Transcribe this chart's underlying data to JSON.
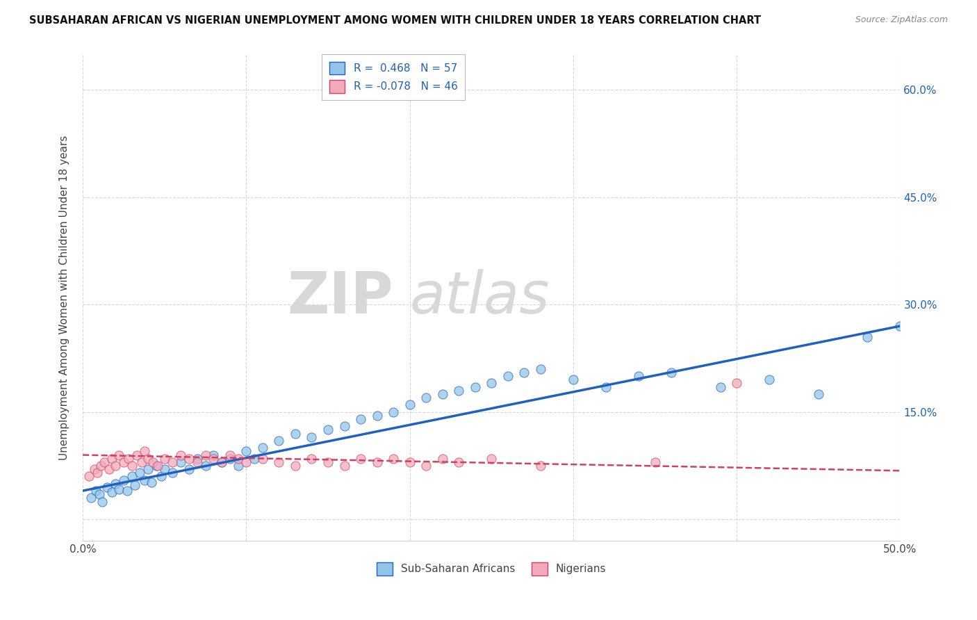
{
  "title": "SUBSAHARAN AFRICAN VS NIGERIAN UNEMPLOYMENT AMONG WOMEN WITH CHILDREN UNDER 18 YEARS CORRELATION CHART",
  "source": "Source: ZipAtlas.com",
  "ylabel": "Unemployment Among Women with Children Under 18 years",
  "xlim": [
    0.0,
    0.5
  ],
  "ylim": [
    -0.03,
    0.65
  ],
  "x_ticks": [
    0.0,
    0.1,
    0.2,
    0.3,
    0.4,
    0.5
  ],
  "x_tick_labels": [
    "0.0%",
    "",
    "",
    "",
    "",
    "50.0%"
  ],
  "y_ticks": [
    0.0,
    0.15,
    0.3,
    0.45,
    0.6
  ],
  "y_tick_right_labels": [
    "",
    "15.0%",
    "30.0%",
    "45.0%",
    "60.0%"
  ],
  "legend_r1": "R =  0.468",
  "legend_n1": "N = 57",
  "legend_r2": "R = -0.078",
  "legend_n2": "N = 46",
  "color_blue": "#92C5E8",
  "color_pink": "#F4AABB",
  "line_blue": "#2060C0",
  "line_pink": "#D04060",
  "background_color": "#FFFFFF",
  "grid_color": "#C8C8C8",
  "label_blue": "Sub-Saharan Africans",
  "label_pink": "Nigerians",
  "blue_scatter_x": [
    0.005,
    0.008,
    0.01,
    0.012,
    0.015,
    0.018,
    0.02,
    0.022,
    0.025,
    0.027,
    0.03,
    0.032,
    0.035,
    0.038,
    0.04,
    0.042,
    0.045,
    0.048,
    0.05,
    0.055,
    0.06,
    0.065,
    0.07,
    0.075,
    0.08,
    0.085,
    0.09,
    0.095,
    0.1,
    0.105,
    0.11,
    0.12,
    0.13,
    0.14,
    0.15,
    0.16,
    0.17,
    0.18,
    0.19,
    0.2,
    0.21,
    0.22,
    0.23,
    0.24,
    0.25,
    0.26,
    0.27,
    0.28,
    0.3,
    0.32,
    0.34,
    0.36,
    0.39,
    0.42,
    0.45,
    0.48,
    0.5
  ],
  "blue_scatter_y": [
    0.03,
    0.04,
    0.035,
    0.025,
    0.045,
    0.038,
    0.05,
    0.042,
    0.055,
    0.04,
    0.06,
    0.048,
    0.065,
    0.055,
    0.07,
    0.052,
    0.075,
    0.06,
    0.07,
    0.065,
    0.08,
    0.07,
    0.085,
    0.075,
    0.09,
    0.08,
    0.085,
    0.075,
    0.095,
    0.085,
    0.1,
    0.11,
    0.12,
    0.115,
    0.125,
    0.13,
    0.14,
    0.145,
    0.15,
    0.16,
    0.17,
    0.175,
    0.18,
    0.185,
    0.19,
    0.2,
    0.205,
    0.21,
    0.195,
    0.185,
    0.2,
    0.205,
    0.185,
    0.195,
    0.175,
    0.255,
    0.27
  ],
  "pink_scatter_x": [
    0.004,
    0.007,
    0.009,
    0.011,
    0.013,
    0.016,
    0.018,
    0.02,
    0.022,
    0.025,
    0.028,
    0.03,
    0.033,
    0.036,
    0.038,
    0.04,
    0.043,
    0.046,
    0.05,
    0.055,
    0.06,
    0.065,
    0.07,
    0.075,
    0.08,
    0.085,
    0.09,
    0.095,
    0.1,
    0.11,
    0.12,
    0.13,
    0.14,
    0.15,
    0.16,
    0.17,
    0.18,
    0.19,
    0.2,
    0.21,
    0.22,
    0.23,
    0.25,
    0.28,
    0.35,
    0.4
  ],
  "pink_scatter_y": [
    0.06,
    0.07,
    0.065,
    0.075,
    0.08,
    0.07,
    0.085,
    0.075,
    0.09,
    0.08,
    0.085,
    0.075,
    0.09,
    0.08,
    0.095,
    0.085,
    0.08,
    0.075,
    0.085,
    0.08,
    0.09,
    0.085,
    0.08,
    0.09,
    0.085,
    0.08,
    0.09,
    0.085,
    0.08,
    0.085,
    0.08,
    0.075,
    0.085,
    0.08,
    0.075,
    0.085,
    0.08,
    0.085,
    0.08,
    0.075,
    0.085,
    0.08,
    0.085,
    0.075,
    0.08,
    0.19
  ],
  "blue_line_x0": 0.0,
  "blue_line_y0": 0.04,
  "blue_line_x1": 0.5,
  "blue_line_y1": 0.27,
  "pink_line_x0": 0.0,
  "pink_line_y0": 0.09,
  "pink_line_x1": 0.5,
  "pink_line_y1": 0.068
}
